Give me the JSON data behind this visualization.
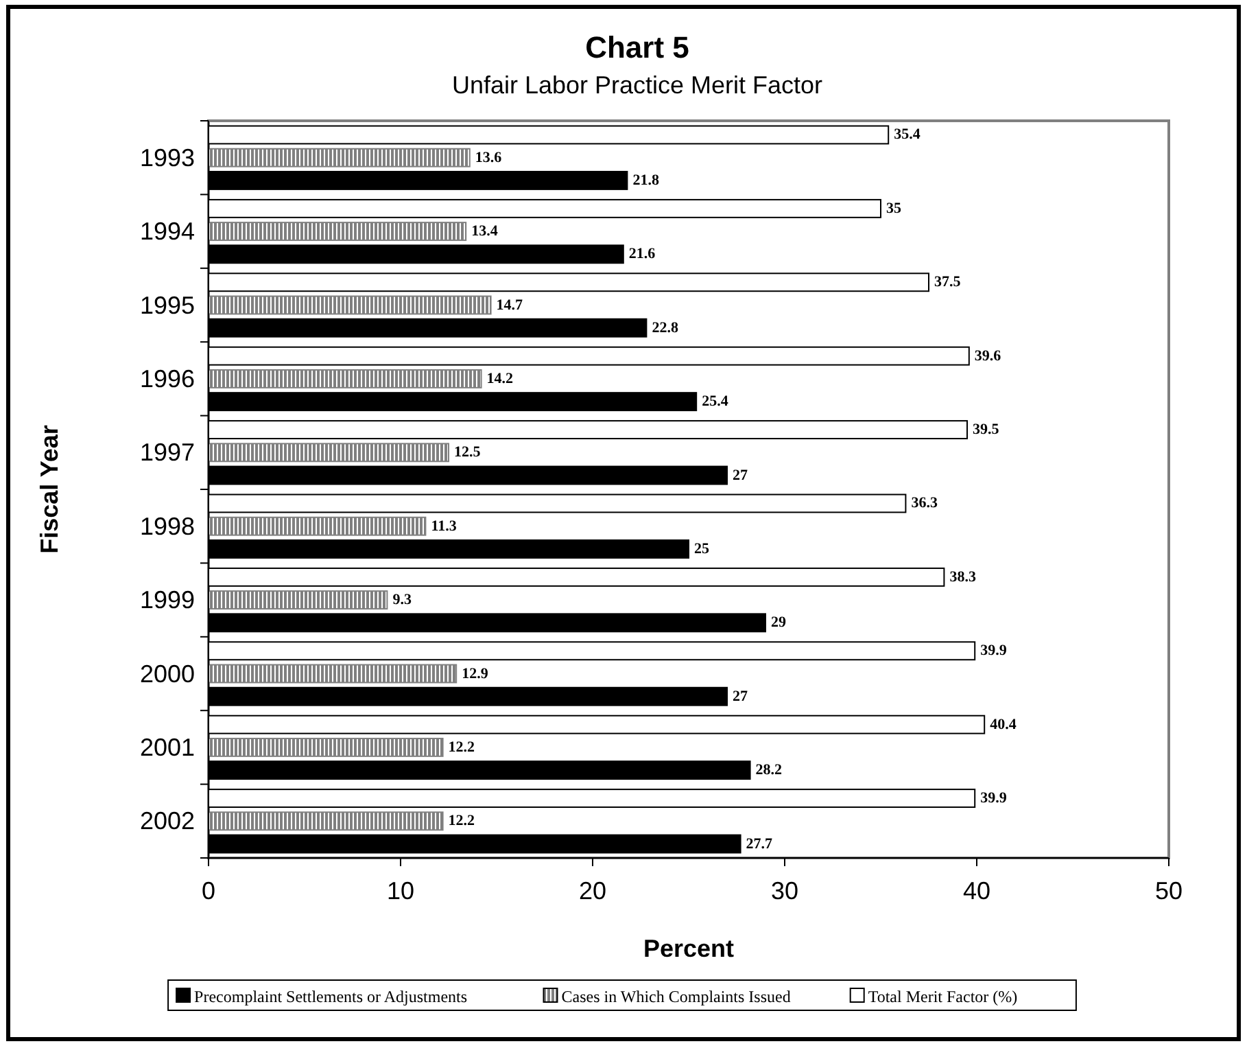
{
  "chart_data": {
    "type": "bar",
    "orientation": "horizontal",
    "title": "Chart 5",
    "subtitle": "Unfair Labor Practice Merit Factor",
    "xlabel": "Percent",
    "ylabel": "Fiscal Year",
    "categories": [
      "1993",
      "1994",
      "1995",
      "1996",
      "1997",
      "1998",
      "1999",
      "2000",
      "2001",
      "2002"
    ],
    "series": [
      {
        "name": "Precomplaint Settlements or Adjustments",
        "color": "#000000",
        "values": [
          21.8,
          21.6,
          22.8,
          25.4,
          27,
          25,
          29,
          27,
          28.2,
          27.7
        ]
      },
      {
        "name": "Cases in Which Complaints Issued",
        "color": "#808080",
        "values": [
          13.6,
          13.4,
          14.7,
          14.2,
          12.5,
          11.3,
          9.3,
          12.9,
          12.2,
          12.2
        ]
      },
      {
        "name": "Total Merit Factor (%)",
        "color": "#ffffff",
        "values": [
          35.4,
          35,
          37.5,
          39.6,
          39.5,
          36.3,
          38.3,
          39.9,
          40.4,
          39.9
        ]
      }
    ],
    "xlim": [
      0,
      50
    ],
    "xticks": [
      0,
      10,
      20,
      30,
      40,
      50
    ],
    "grid": false,
    "legend": "bottom",
    "data_labels": true
  }
}
